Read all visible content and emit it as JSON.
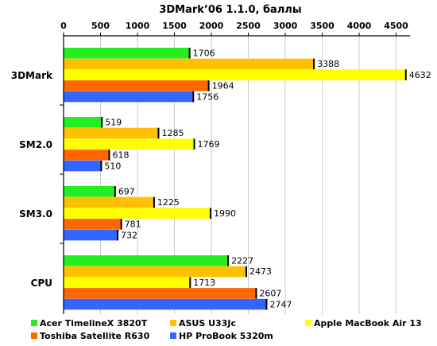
{
  "chart_data": {
    "type": "bar",
    "orientation": "horizontal",
    "title": "3DMark’06 1.1.0, баллы",
    "xlabel": "",
    "ylabel": "",
    "xlim": [
      0,
      4700
    ],
    "ticks": [
      "0",
      "500",
      "1000",
      "1500",
      "2000",
      "2500",
      "3000",
      "3500",
      "4000",
      "4500"
    ],
    "tick_values": [
      0,
      500,
      1000,
      1500,
      2000,
      2500,
      3000,
      3500,
      4000,
      4500
    ],
    "grid": true,
    "legend_position": "bottom",
    "categories": [
      "3DMark",
      "SM2.0",
      "SM3.0",
      "CPU"
    ],
    "series": [
      {
        "name": "Acer TimelineX 3820T",
        "color": "#22ee22",
        "values": [
          1706,
          519,
          697,
          2227
        ]
      },
      {
        "name": "ASUS U33Jc",
        "color": "#ffc000",
        "values": [
          3388,
          1285,
          1225,
          2473
        ]
      },
      {
        "name": "Apple MacBook Air 13",
        "color": "#ffff00",
        "values": [
          4632,
          1769,
          1990,
          1713
        ]
      },
      {
        "name": "Toshiba Satellite R630",
        "color": "#ff6600",
        "values": [
          1964,
          618,
          781,
          2607
        ]
      },
      {
        "name": "HP ProBook 5320m",
        "color": "#3366ff",
        "values": [
          1756,
          510,
          732,
          2747
        ]
      }
    ]
  }
}
